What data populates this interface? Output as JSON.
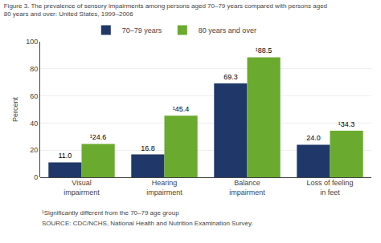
{
  "chart_data": {
    "type": "bar",
    "title": "Figure 3. The prevalence of sensory impairments among persons aged 70–79 years compared with persons aged\n80 years and over: United States, 1999–2006",
    "categories": [
      "Visual\nimpairment",
      "Hearing\nimpairment",
      "Balance\nimpairment",
      "Loss of feeling\nin feet"
    ],
    "series": [
      {
        "name": "70–79 years",
        "color": "#1f3869",
        "values": [
          11.0,
          16.8,
          69.3,
          24.0
        ],
        "value_labels": [
          "11.0",
          "16.8",
          "69.3",
          "24.0"
        ]
      },
      {
        "name": "80 years and over",
        "color": "#6aaa2e",
        "values": [
          24.6,
          45.4,
          88.5,
          34.3
        ],
        "value_labels": [
          "¹24.6",
          "¹45.4",
          "¹88.5",
          "¹34.3"
        ]
      }
    ],
    "ylabel": "Percent",
    "ylim": [
      0,
      100
    ],
    "yticks": [
      0,
      20,
      40,
      60,
      80,
      100
    ],
    "grid": true,
    "legend": "top",
    "data_labels": true,
    "annotations": [
      "¹Significantly different from the 70–79 age group",
      "SOURCE: CDC/NCHS, National Health and Nutrition Examination Survey."
    ]
  }
}
